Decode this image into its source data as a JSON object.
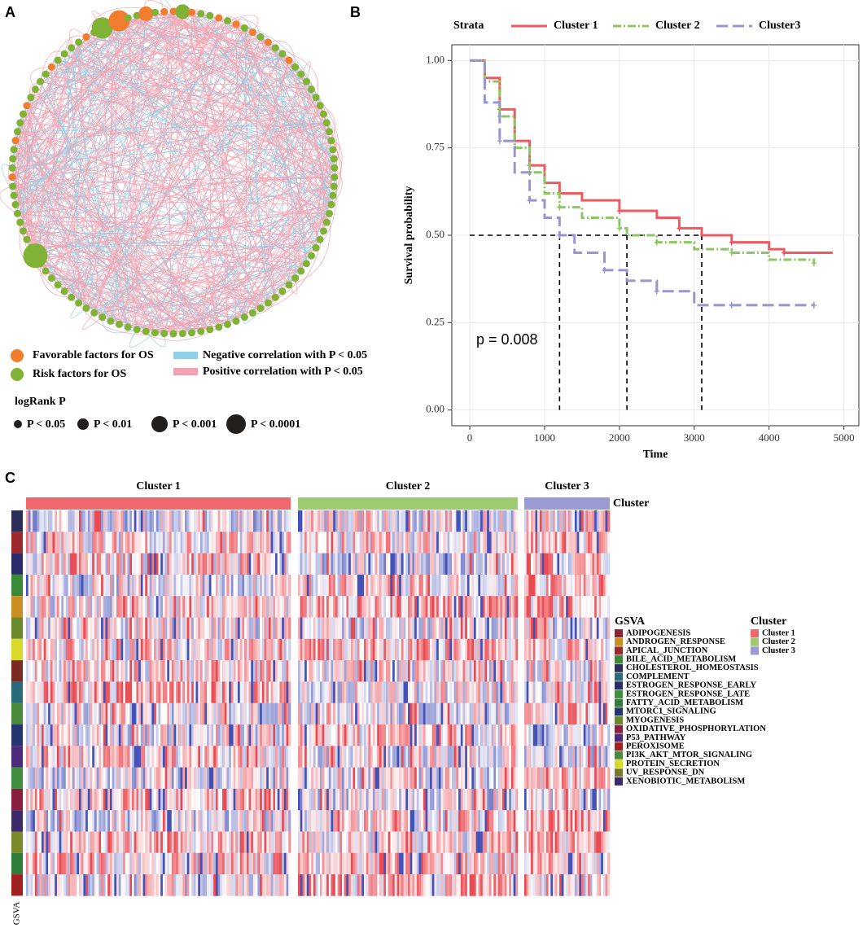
{
  "panel_labels": [
    "A",
    "B",
    "C"
  ],
  "network": {
    "node_legend": [
      {
        "label": "Favorable factors for OS",
        "color": "#ef7d2d"
      },
      {
        "label": "Risk factors for OS",
        "color": "#7fb235"
      }
    ],
    "edge_legend": [
      {
        "label": "Negative correlation with P < 0.05",
        "color": "#8fd0e6"
      },
      {
        "label": "Positive correlation with P < 0.05",
        "color": "#f2a3b3"
      }
    ],
    "size_legend_title": "logRank P",
    "size_legend": [
      "P < 0.05",
      "P < 0.01",
      "P < 0.001",
      "P < 0.0001"
    ]
  },
  "chart_data": {
    "type": "line",
    "legend_title": "Strata",
    "xlabel": "Time",
    "ylabel": "Survival probability",
    "annotation": "p = 0.008",
    "xlim": [
      -240,
      5200
    ],
    "ylim": [
      -0.045,
      1.045
    ],
    "xticks": [
      0,
      1000,
      2000,
      3000,
      4000,
      5000
    ],
    "yticks": [
      {
        "value": 0,
        "label": "0.00"
      },
      {
        "value": 0.25,
        "label": "0.25"
      },
      {
        "value": 0.5,
        "label": "0.50"
      },
      {
        "value": 0.75,
        "label": "0.75"
      },
      {
        "value": 1,
        "label": "1.00"
      }
    ],
    "grid": true,
    "median_survival": {
      "level": 0.5,
      "values": [
        3100,
        2100,
        1200
      ]
    },
    "series": [
      {
        "name": "Cluster 1",
        "color": "#ee5a5f",
        "x": [
          0,
          200,
          400,
          600,
          800,
          1000,
          1200,
          1500,
          2000,
          2500,
          2800,
          3100,
          3500,
          4000,
          4200,
          4850
        ],
        "values": [
          1,
          0.95,
          0.86,
          0.77,
          0.7,
          0.65,
          0.62,
          0.6,
          0.57,
          0.55,
          0.52,
          0.5,
          0.48,
          0.46,
          0.45,
          0.45
        ]
      },
      {
        "name": "Cluster 2",
        "color": "#8dc663",
        "x": [
          0,
          200,
          400,
          600,
          800,
          1000,
          1200,
          1500,
          2000,
          2100,
          2500,
          3000,
          3500,
          4000,
          4600
        ],
        "values": [
          1,
          0.94,
          0.84,
          0.75,
          0.68,
          0.62,
          0.58,
          0.55,
          0.52,
          0.5,
          0.48,
          0.46,
          0.45,
          0.43,
          0.42
        ]
      },
      {
        "name": "Cluster3",
        "color": "#9895cf",
        "x": [
          0,
          200,
          400,
          600,
          800,
          1000,
          1200,
          1400,
          1800,
          2100,
          2500,
          3000,
          3500,
          4000,
          4600
        ],
        "values": [
          1,
          0.88,
          0.77,
          0.68,
          0.6,
          0.55,
          0.5,
          0.45,
          0.4,
          0.37,
          0.34,
          0.3,
          0.3,
          0.3,
          0.3
        ]
      }
    ]
  },
  "heatmap": {
    "annotation_label": "Cluster",
    "row_label": "GSVA",
    "clusters": [
      {
        "name": "Cluster 1",
        "color": "#f0676d"
      },
      {
        "name": "Cluster 2",
        "color": "#9dcb6f"
      },
      {
        "name": "Cluster 3",
        "color": "#9c9ad3"
      }
    ],
    "gsva_legend_title": "GSVA",
    "cluster_legend_title": "Cluster",
    "gene_sets": [
      {
        "name": "ADIPOGENESIS",
        "color": "#8b2332"
      },
      {
        "name": "ANDROGEN_RESPONSE",
        "color": "#c89020"
      },
      {
        "name": "APICAL_JUNCTION",
        "color": "#9b2b2b"
      },
      {
        "name": "BILE_ACID_METABOLISM",
        "color": "#3a8a3a"
      },
      {
        "name": "CHOLESTEROL_HOMEOSTASIS",
        "color": "#2d2d5a"
      },
      {
        "name": "COMPLEMENT",
        "color": "#2a6b7a"
      },
      {
        "name": "ESTROGEN_RESPONSE_EARLY",
        "color": "#2b2b6b"
      },
      {
        "name": "ESTROGEN_RESPONSE_LATE",
        "color": "#3f8f3f"
      },
      {
        "name": "FATTY_ACID_METABOLISM",
        "color": "#2e7d3a"
      },
      {
        "name": "MTORC1_SIGNALING",
        "color": "#253570"
      },
      {
        "name": "MYOGENESIS",
        "color": "#6b8a2b"
      },
      {
        "name": "OXIDATIVE_PHOSPHORYLATION",
        "color": "#8a2040"
      },
      {
        "name": "P53_PATHWAY",
        "color": "#4b2b7a"
      },
      {
        "name": "PEROXISOME",
        "color": "#a02020"
      },
      {
        "name": "PI3K_AKT_MTOR_SIGNALING",
        "color": "#4a8a3a"
      },
      {
        "name": "PROTEIN_SECRETION",
        "color": "#d9d92a"
      },
      {
        "name": "UV_RESPONSE_DN",
        "color": "#7a7a2b"
      },
      {
        "name": "XENOBIOTIC_METABOLISM",
        "color": "#3b2b6b"
      }
    ],
    "row_colors": [
      "#2d2d5a",
      "#9b2b2b",
      "#2b2b6b",
      "#3a8a3a",
      "#c89020",
      "#6b8a2b",
      "#d9d92a",
      "#7a2a20",
      "#2a6b7a",
      "#4a8a3a",
      "#253570",
      "#4b2b7a",
      "#3f8f3f",
      "#8a2040",
      "#3b2b6b",
      "#7a8a2b",
      "#2e7d3a",
      "#a02020"
    ]
  }
}
